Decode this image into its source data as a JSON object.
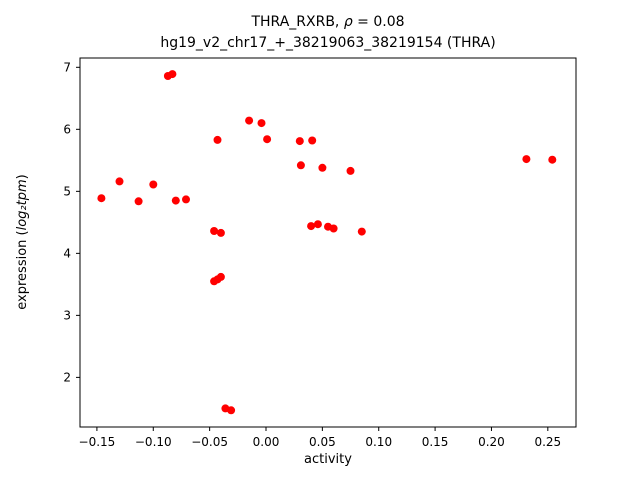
{
  "figure": {
    "background": "#ffffff"
  },
  "chart_data": {
    "type": "scatter",
    "title": {
      "prefix": "THRA_RXRB, ",
      "rho": "ρ",
      "suffix": " = 0.08"
    },
    "subtitle": "hg19_v2_chr17_+_38219063_38219154 (THRA)",
    "xlabel": "activity",
    "ylabel": {
      "prefix": "expression (",
      "math": "log₂tpm",
      "suffix": ")"
    },
    "xlim": [
      -0.165,
      0.275
    ],
    "ylim": [
      1.2,
      7.15
    ],
    "x_ticks": [
      {
        "v": -0.15,
        "label": "−0.15"
      },
      {
        "v": -0.1,
        "label": "−0.10"
      },
      {
        "v": -0.05,
        "label": "−0.05"
      },
      {
        "v": 0.0,
        "label": "0.00"
      },
      {
        "v": 0.05,
        "label": "0.05"
      },
      {
        "v": 0.1,
        "label": "0.10"
      },
      {
        "v": 0.15,
        "label": "0.15"
      },
      {
        "v": 0.2,
        "label": "0.20"
      },
      {
        "v": 0.25,
        "label": "0.25"
      }
    ],
    "y_ticks": [
      {
        "v": 2,
        "label": "2"
      },
      {
        "v": 3,
        "label": "3"
      },
      {
        "v": 4,
        "label": "4"
      },
      {
        "v": 5,
        "label": "5"
      },
      {
        "v": 6,
        "label": "6"
      },
      {
        "v": 7,
        "label": "7"
      }
    ],
    "grid": false,
    "legend": null,
    "marker": {
      "color": "#ff0000",
      "radius": 4
    },
    "points": [
      [
        -0.146,
        4.89
      ],
      [
        -0.13,
        5.16
      ],
      [
        -0.113,
        4.84
      ],
      [
        -0.1,
        5.11
      ],
      [
        -0.087,
        6.86
      ],
      [
        -0.083,
        6.89
      ],
      [
        -0.08,
        4.85
      ],
      [
        -0.071,
        4.87
      ],
      [
        -0.043,
        5.83
      ],
      [
        -0.046,
        4.36
      ],
      [
        -0.04,
        4.33
      ],
      [
        -0.046,
        3.55
      ],
      [
        -0.043,
        3.58
      ],
      [
        -0.04,
        3.62
      ],
      [
        -0.036,
        1.5
      ],
      [
        -0.031,
        1.47
      ],
      [
        -0.015,
        6.14
      ],
      [
        -0.004,
        6.1
      ],
      [
        0.001,
        5.84
      ],
      [
        0.03,
        5.81
      ],
      [
        0.041,
        5.82
      ],
      [
        0.031,
        5.42
      ],
      [
        0.05,
        5.38
      ],
      [
        0.04,
        4.44
      ],
      [
        0.046,
        4.47
      ],
      [
        0.055,
        4.43
      ],
      [
        0.06,
        4.4
      ],
      [
        0.075,
        5.33
      ],
      [
        0.085,
        4.35
      ],
      [
        0.231,
        5.52
      ],
      [
        0.254,
        5.51
      ]
    ]
  }
}
